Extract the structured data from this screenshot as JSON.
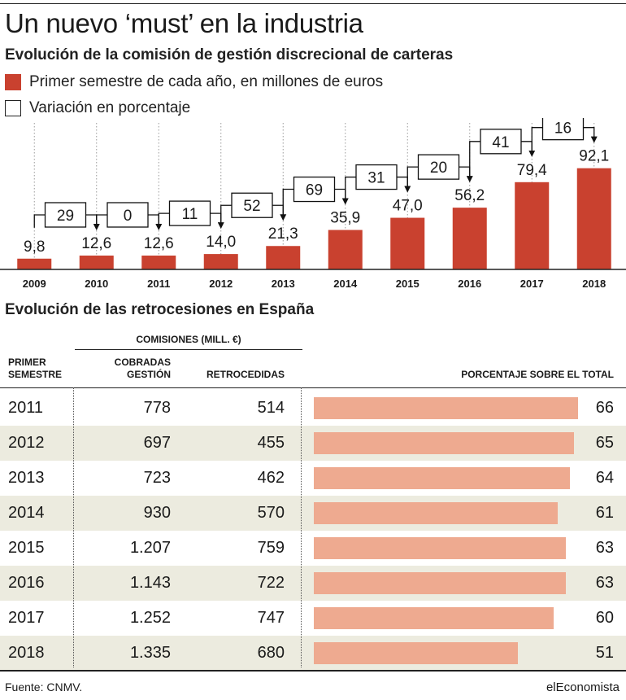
{
  "title": "Un nuevo ‘must’ en la industria",
  "subtitle": "Evolución de la comisión de gestión discrecional de carteras",
  "legend": [
    {
      "label": "Primer semestre de cada año, en millones de euros",
      "color": "#c9412f",
      "filled": true
    },
    {
      "label": "Variación en porcentaje",
      "color": "#222222",
      "filled": false
    }
  ],
  "chart_data": [
    {
      "type": "bar",
      "title": "Evolución de la comisión de gestión discrecional de carteras",
      "categories": [
        "2009",
        "2010",
        "2011",
        "2012",
        "2013",
        "2014",
        "2015",
        "2016",
        "2017",
        "2018"
      ],
      "series": [
        {
          "name": "Primer semestre de cada año, en millones de euros",
          "values": [
            9.8,
            12.6,
            12.6,
            14.0,
            21.3,
            35.9,
            47.0,
            56.2,
            79.4,
            92.1
          ],
          "color": "#c9412f"
        }
      ],
      "value_labels": [
        "9,8",
        "12,6",
        "12,6",
        "14,0",
        "21,3",
        "35,9",
        "47,0",
        "56,2",
        "79,4",
        "92,1"
      ],
      "annotations": {
        "name": "Variación en porcentaje",
        "values": [
          29,
          0,
          11,
          52,
          69,
          31,
          20,
          41,
          16
        ],
        "between": [
          [
            "2009",
            "2010"
          ],
          [
            "2010",
            "2011"
          ],
          [
            "2011",
            "2012"
          ],
          [
            "2012",
            "2013"
          ],
          [
            "2013",
            "2014"
          ],
          [
            "2014",
            "2015"
          ],
          [
            "2015",
            "2016"
          ],
          [
            "2016",
            "2017"
          ],
          [
            "2017",
            "2018"
          ]
        ]
      },
      "ylim": [
        0,
        100
      ],
      "grid": "vertical dotted",
      "legend_position": "top-left"
    },
    {
      "type": "table",
      "title": "Evolución de las retrocesiones en España",
      "column_group": "COMISIONES (MILL. €)",
      "columns": [
        "PRIMER SEMESTRE",
        "COBRADAS GESTIÓN",
        "RETROCEDIDAS",
        "PORCENTAJE SOBRE EL TOTAL"
      ],
      "rows": [
        {
          "year": "2011",
          "cobradas": "778",
          "retrocedidas": "514",
          "pct": 66
        },
        {
          "year": "2012",
          "cobradas": "697",
          "retrocedidas": "455",
          "pct": 65
        },
        {
          "year": "2013",
          "cobradas": "723",
          "retrocedidas": "462",
          "pct": 64
        },
        {
          "year": "2014",
          "cobradas": "930",
          "retrocedidas": "570",
          "pct": 61
        },
        {
          "year": "2015",
          "cobradas": "1.207",
          "retrocedidas": "759",
          "pct": 63
        },
        {
          "year": "2016",
          "cobradas": "1.143",
          "retrocedidas": "722",
          "pct": 63
        },
        {
          "year": "2017",
          "cobradas": "1.252",
          "retrocedidas": "747",
          "pct": 60
        },
        {
          "year": "2018",
          "cobradas": "1.335",
          "retrocedidas": "680",
          "pct": 51
        }
      ],
      "bar_color": "#eeaa90",
      "stripe_color": "#ecebdf"
    }
  ],
  "table": {
    "title": "Evolución de las retrocesiones en España",
    "group_header": "COMISIONES (MILL. €)",
    "headers": {
      "year_1": "PRIMER",
      "year_2": "SEMESTRE",
      "cobradas_1": "COBRADAS",
      "cobradas_2": "GESTIÓN",
      "retrocedidas": "RETROCEDIDAS",
      "pct": "PORCENTAJE SOBRE EL TOTAL"
    }
  },
  "footer": {
    "source": "Fuente: CNMV.",
    "brand": "elEconomista"
  }
}
